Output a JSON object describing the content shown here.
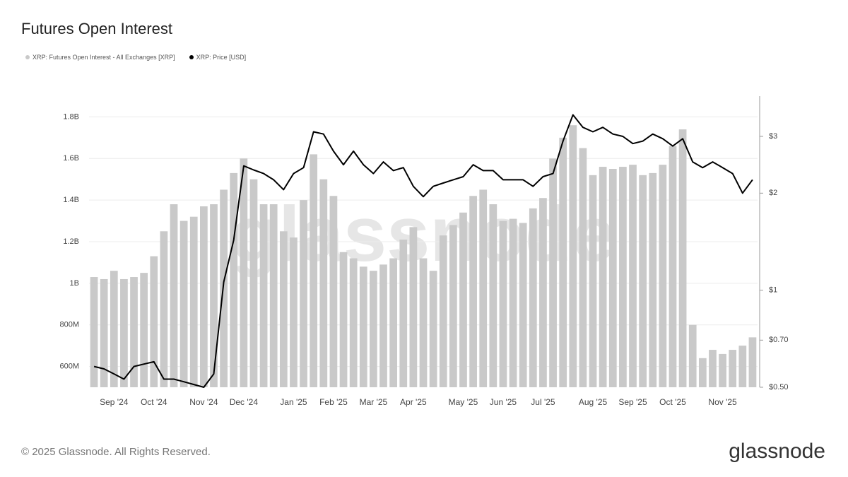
{
  "chart_data": {
    "type": "bar-line",
    "title": "Futures Open Interest",
    "watermark": "glassnode",
    "footer": "© 2025 Glassnode. All Rights Reserved.",
    "logo": "glassnode",
    "categories": [
      null,
      null,
      "Sep '24",
      null,
      null,
      null,
      "Oct '24",
      null,
      null,
      null,
      null,
      "Nov '24",
      null,
      null,
      null,
      "Dec '24",
      null,
      null,
      null,
      null,
      "Jan '25",
      null,
      null,
      null,
      "Feb '25",
      null,
      null,
      null,
      "Mar '25",
      null,
      null,
      null,
      "Apr '25",
      null,
      null,
      null,
      null,
      "May '25",
      null,
      null,
      null,
      "Jun '25",
      null,
      null,
      null,
      "Jul '25",
      null,
      null,
      null,
      null,
      "Aug '25",
      null,
      null,
      null,
      "Sep '25",
      null,
      null,
      null,
      "Oct '25",
      null,
      null,
      null,
      null,
      "Nov '25",
      null,
      null,
      null
    ],
    "series": [
      {
        "name": "XRP: Futures Open Interest - All Exchanges [XRP]",
        "type": "bar",
        "color": "#c9c9c9",
        "axis": "y",
        "values": [
          1030000000.0,
          1020000000.0,
          1060000000.0,
          1020000000.0,
          1030000000.0,
          1050000000.0,
          1130000000.0,
          1250000000.0,
          1380000000.0,
          1300000000.0,
          1320000000.0,
          1370000000.0,
          1380000000.0,
          1450000000.0,
          1530000000.0,
          1600000000.0,
          1500000000.0,
          1380000000.0,
          1380000000.0,
          1250000000.0,
          1220000000.0,
          1400000000.0,
          1620000000.0,
          1500000000.0,
          1420000000.0,
          1150000000.0,
          1120000000.0,
          1080000000.0,
          1060000000.0,
          1090000000.0,
          1120000000.0,
          1210000000.0,
          1270000000.0,
          1120000000.0,
          1060000000.0,
          1230000000.0,
          1280000000.0,
          1340000000.0,
          1420000000.0,
          1450000000.0,
          1380000000.0,
          1300000000.0,
          1310000000.0,
          1290000000.0,
          1360000000.0,
          1410000000.0,
          1600000000.0,
          1700000000.0,
          1760000000.0,
          1650000000.0,
          1520000000.0,
          1560000000.0,
          1550000000.0,
          1560000000.0,
          1570000000.0,
          1520000000.0,
          1530000000.0,
          1570000000.0,
          1660000000.0,
          1740000000.0,
          800000000.0,
          640000000.0,
          680000000.0,
          660000000.0,
          680000000.0,
          700000000.0,
          740000000.0
        ]
      },
      {
        "name": "XRP: Price [USD]",
        "type": "line",
        "color": "#000000",
        "axis": "y2",
        "values": [
          0.58,
          0.57,
          0.55,
          0.53,
          0.58,
          0.59,
          0.6,
          0.53,
          0.53,
          0.52,
          0.51,
          0.5,
          0.55,
          1.06,
          1.43,
          2.43,
          2.36,
          2.3,
          2.2,
          2.05,
          2.3,
          2.4,
          3.1,
          3.05,
          2.7,
          2.45,
          2.7,
          2.45,
          2.3,
          2.5,
          2.35,
          2.4,
          2.1,
          1.95,
          2.1,
          2.15,
          2.2,
          2.25,
          2.45,
          2.35,
          2.35,
          2.2,
          2.2,
          2.2,
          2.1,
          2.25,
          2.3,
          2.9,
          3.5,
          3.2,
          3.1,
          3.2,
          3.05,
          3.0,
          2.85,
          2.9,
          3.05,
          2.95,
          2.8,
          2.95,
          2.5,
          2.4,
          2.5,
          2.4,
          2.3,
          2.0,
          2.2
        ]
      }
    ],
    "ylim": [
      500000000.0,
      1900000000.0
    ],
    "yticks": [
      {
        "value": 600000000.0,
        "label": "600M"
      },
      {
        "value": 800000000.0,
        "label": "800M"
      },
      {
        "value": 1000000000.0,
        "label": "1B"
      },
      {
        "value": 1200000000.0,
        "label": "1.2B"
      },
      {
        "value": 1400000000.0,
        "label": "1.4B"
      },
      {
        "value": 1600000000.0,
        "label": "1.6B"
      },
      {
        "value": 1800000000.0,
        "label": "1.8B"
      }
    ],
    "y2lim": [
      0.5,
      4
    ],
    "y2scale": "log",
    "y2ticks": [
      {
        "value": 0.5,
        "label": "$0.50"
      },
      {
        "value": 0.7,
        "label": "$0.70"
      },
      {
        "value": 1,
        "label": "$1"
      },
      {
        "value": 2,
        "label": "$2"
      },
      {
        "value": 3,
        "label": "$3"
      }
    ],
    "grid": true
  }
}
